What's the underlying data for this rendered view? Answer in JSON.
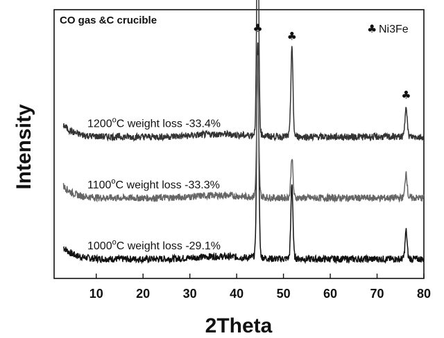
{
  "chart_data": {
    "type": "line",
    "title": "CO gas &C crucible",
    "xlabel": "2Theta",
    "ylabel": "Intensity",
    "xlim": [
      1,
      80
    ],
    "x_ticks": [
      10,
      20,
      30,
      40,
      50,
      60,
      70,
      80
    ],
    "y_ticks_shown": false,
    "grid": false,
    "legend": {
      "position": "top-right",
      "marker_symbol": "♣",
      "label": "Ni3Fe"
    },
    "peak_markers": {
      "symbol": "♣",
      "x": [
        44.5,
        51.8,
        76.2
      ]
    },
    "series": [
      {
        "name": "1000°C weight loss -29.1%",
        "label_prefix": "1000",
        "label_suffix": "C weight loss -29.1%",
        "label_degree": "o",
        "color": "#111111",
        "baseline": 0.0,
        "peaks": [
          {
            "x": 44.5,
            "height": 10.0
          },
          {
            "x": 51.8,
            "height": 3.5
          },
          {
            "x": 76.2,
            "height": 1.3
          }
        ]
      },
      {
        "name": "1100°C weight loss -33.3%",
        "label_prefix": "1100",
        "label_suffix": "C weight loss -33.3%",
        "label_degree": "o",
        "color": "#666666",
        "baseline": 2.8,
        "peaks": [
          {
            "x": 44.5,
            "height": 6.5
          },
          {
            "x": 51.8,
            "height": 1.9
          },
          {
            "x": 76.2,
            "height": 1.2
          }
        ]
      },
      {
        "name": "1200°C weight loss -33.4%",
        "label_prefix": "1200",
        "label_suffix": "C weight loss -33.4%",
        "label_degree": "o",
        "color": "#333333",
        "baseline": 5.6,
        "peaks": [
          {
            "x": 44.5,
            "height": 11.0
          },
          {
            "x": 51.8,
            "height": 4.2
          },
          {
            "x": 76.2,
            "height": 1.5
          }
        ]
      }
    ]
  }
}
